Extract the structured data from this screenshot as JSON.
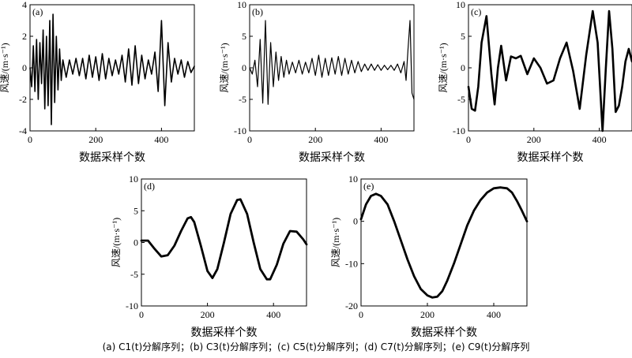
{
  "caption": "(a) C1(t)分解序列；(b) C3(t)分解序列；(c) C5(t)分解序列；(d) C7(t)分解序列；(e) C9(t)分解序列",
  "chart_data": [
    {
      "type": "line",
      "tag": "(a)",
      "xlabel": "数据采样个数",
      "ylabel": "风速/(m·s⁻¹)",
      "xlim": [
        0,
        500
      ],
      "ylim": [
        -4,
        4
      ],
      "xticks": [
        0,
        200,
        400
      ],
      "yticks": [
        -4,
        -2,
        0,
        2,
        4
      ],
      "grid": false,
      "series": [
        {
          "x": [
            0,
            5,
            10,
            15,
            20,
            25,
            30,
            35,
            40,
            45,
            50,
            55,
            60,
            65,
            70,
            75,
            80,
            85,
            90,
            95,
            100,
            110,
            120,
            130,
            140,
            150,
            160,
            170,
            180,
            190,
            200,
            210,
            220,
            230,
            240,
            250,
            260,
            270,
            280,
            290,
            300,
            310,
            320,
            330,
            340,
            350,
            360,
            370,
            380,
            390,
            400,
            410,
            420,
            430,
            440,
            450,
            460,
            470,
            480,
            490,
            500
          ],
          "y": [
            0,
            -1.2,
            1.4,
            -1.5,
            1.8,
            -2.0,
            1.6,
            -1.0,
            2.4,
            -2.6,
            2.0,
            -2.4,
            3.0,
            -3.6,
            3.4,
            -2.2,
            2.0,
            -1.4,
            1.2,
            -0.8,
            0.5,
            -0.6,
            0.5,
            -0.4,
            0.6,
            -0.5,
            0.6,
            -0.7,
            0.8,
            -0.6,
            0.7,
            -0.8,
            0.9,
            -0.7,
            0.6,
            -0.5,
            0.5,
            -0.4,
            0.8,
            -0.9,
            1.2,
            -1.1,
            1.4,
            -1.0,
            0.8,
            -0.7,
            0.5,
            -0.4,
            1.0,
            -1.5,
            3.0,
            -2.4,
            1.6,
            -0.9,
            0.6,
            -0.4,
            0.5,
            -0.6,
            0.4,
            -0.3,
            0.1
          ]
        }
      ]
    },
    {
      "type": "line",
      "tag": "(b)",
      "xlabel": "数据采样个数",
      "ylabel": "风速/(m·s⁻¹)",
      "xlim": [
        0,
        500
      ],
      "ylim": [
        -10,
        10
      ],
      "xticks": [
        0,
        200,
        400
      ],
      "yticks": [
        -10,
        -5,
        0,
        5,
        10
      ],
      "grid": false,
      "series": [
        {
          "x": [
            0,
            8,
            16,
            24,
            32,
            40,
            48,
            56,
            64,
            72,
            80,
            88,
            96,
            104,
            112,
            120,
            130,
            140,
            150,
            160,
            170,
            180,
            190,
            200,
            210,
            220,
            230,
            240,
            250,
            260,
            270,
            280,
            290,
            300,
            310,
            320,
            330,
            340,
            350,
            360,
            370,
            380,
            390,
            400,
            410,
            420,
            430,
            440,
            450,
            460,
            470,
            476,
            482,
            488,
            494,
            500
          ],
          "y": [
            0,
            -1.0,
            1.2,
            -3.0,
            4.5,
            -5.6,
            7.5,
            -5.8,
            4.0,
            -3.0,
            2.5,
            -2.0,
            1.8,
            -1.5,
            1.2,
            -1.0,
            0.9,
            -0.8,
            1.2,
            -1.0,
            0.9,
            -0.8,
            1.5,
            -1.2,
            2.0,
            -1.5,
            1.5,
            -1.2,
            1.6,
            -1.0,
            1.8,
            -1.2,
            1.5,
            -1.0,
            1.2,
            -0.8,
            1.0,
            -0.6,
            0.6,
            -0.4,
            0.6,
            -0.4,
            0.5,
            -0.4,
            0.4,
            -0.3,
            0.4,
            -0.4,
            0.6,
            -0.8,
            1.0,
            -2.0,
            3.0,
            7.5,
            -4.0,
            -5.0
          ]
        }
      ]
    },
    {
      "type": "line",
      "tag": "(c)",
      "xlabel": "数据采样个数",
      "ylabel": "风速/(m·s⁻¹)",
      "xlim": [
        0,
        500
      ],
      "ylim": [
        -10,
        10
      ],
      "xticks": [
        0,
        200,
        400
      ],
      "yticks": [
        -10,
        -5,
        0,
        5,
        10
      ],
      "grid": false,
      "series": [
        {
          "x": [
            0,
            10,
            20,
            30,
            40,
            55,
            70,
            80,
            90,
            100,
            115,
            130,
            145,
            160,
            180,
            200,
            220,
            240,
            260,
            280,
            300,
            320,
            340,
            360,
            380,
            395,
            410,
            420,
            430,
            440,
            450,
            460,
            470,
            480,
            490,
            500
          ],
          "y": [
            -3.0,
            -6.5,
            -6.8,
            -3.0,
            4.0,
            8.2,
            -1.0,
            -5.8,
            0.0,
            3.5,
            -2.0,
            1.8,
            1.5,
            1.9,
            -1.0,
            1.5,
            0.0,
            -2.5,
            -2.0,
            1.5,
            4.0,
            -0.5,
            -6.5,
            2.0,
            9.0,
            4.0,
            -10.0,
            0.0,
            9.0,
            3.0,
            -7.0,
            -6.0,
            -3.0,
            1.0,
            3.0,
            1.0
          ]
        }
      ]
    },
    {
      "type": "line",
      "tag": "(d)",
      "xlabel": "数据采样个数",
      "ylabel": "风速/(m·s⁻¹)",
      "xlim": [
        0,
        500
      ],
      "ylim": [
        -10,
        10
      ],
      "xticks": [
        0,
        200,
        400
      ],
      "yticks": [
        -10,
        -5,
        0,
        5,
        10
      ],
      "grid": false,
      "series": [
        {
          "x": [
            0,
            20,
            40,
            60,
            80,
            100,
            120,
            140,
            150,
            160,
            180,
            200,
            215,
            230,
            250,
            270,
            290,
            300,
            320,
            340,
            360,
            380,
            390,
            410,
            430,
            450,
            470,
            490,
            500
          ],
          "y": [
            0.3,
            0.3,
            -1.0,
            -2.2,
            -2.0,
            -0.5,
            1.8,
            3.8,
            4.0,
            3.2,
            -0.5,
            -4.5,
            -5.6,
            -4.2,
            0.0,
            4.5,
            6.7,
            6.8,
            4.5,
            0.0,
            -4.2,
            -5.8,
            -5.8,
            -3.5,
            -0.2,
            1.8,
            1.7,
            0.5,
            -0.3
          ]
        }
      ]
    },
    {
      "type": "line",
      "tag": "(e)",
      "xlabel": "数据采样个数",
      "ylabel": "风速/(m·s⁻¹)",
      "xlim": [
        0,
        500
      ],
      "ylim": [
        -20,
        10
      ],
      "xticks": [
        0,
        200,
        400
      ],
      "yticks": [
        -20,
        -10,
        0,
        10
      ],
      "grid": false,
      "series": [
        {
          "x": [
            0,
            15,
            30,
            45,
            60,
            80,
            100,
            120,
            140,
            160,
            180,
            200,
            215,
            230,
            245,
            260,
            280,
            300,
            320,
            340,
            360,
            380,
            400,
            420,
            440,
            455,
            470,
            485,
            500
          ],
          "y": [
            0.5,
            4.0,
            6.0,
            6.5,
            6.0,
            4.0,
            0.0,
            -4.5,
            -9.0,
            -13.0,
            -16.0,
            -17.5,
            -18.0,
            -17.8,
            -16.5,
            -14.0,
            -10.0,
            -5.5,
            -1.0,
            2.5,
            5.0,
            6.8,
            7.8,
            8.0,
            7.8,
            6.8,
            4.8,
            2.5,
            0.0
          ]
        }
      ]
    }
  ]
}
